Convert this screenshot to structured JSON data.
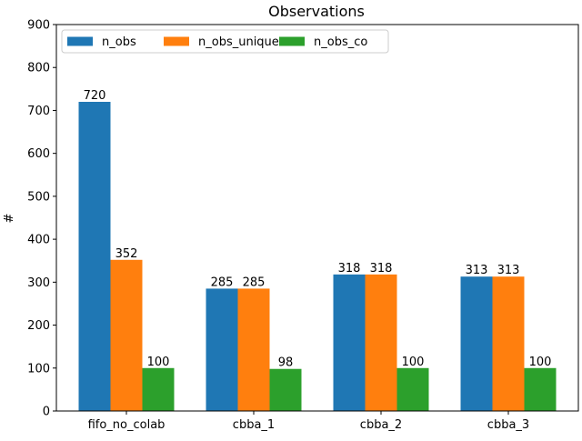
{
  "chart_data": {
    "type": "bar",
    "title": "Observations",
    "xlabel": "",
    "ylabel": "#",
    "ylim": [
      0,
      900
    ],
    "yticks": [
      0,
      100,
      200,
      300,
      400,
      500,
      600,
      700,
      800,
      900
    ],
    "categories": [
      "fifo_no_colab",
      "cbba_1",
      "cbba_2",
      "cbba_3"
    ],
    "series": [
      {
        "name": "n_obs",
        "color": "#1f77b4",
        "values": [
          720,
          285,
          318,
          313
        ]
      },
      {
        "name": "n_obs_unique",
        "color": "#ff7f0e",
        "values": [
          352,
          285,
          318,
          313
        ]
      },
      {
        "name": "n_obs_co",
        "color": "#2ca02c",
        "values": [
          100,
          98,
          100,
          100
        ]
      }
    ],
    "data_labels": true,
    "grid": false,
    "legend_position": "top-left"
  }
}
